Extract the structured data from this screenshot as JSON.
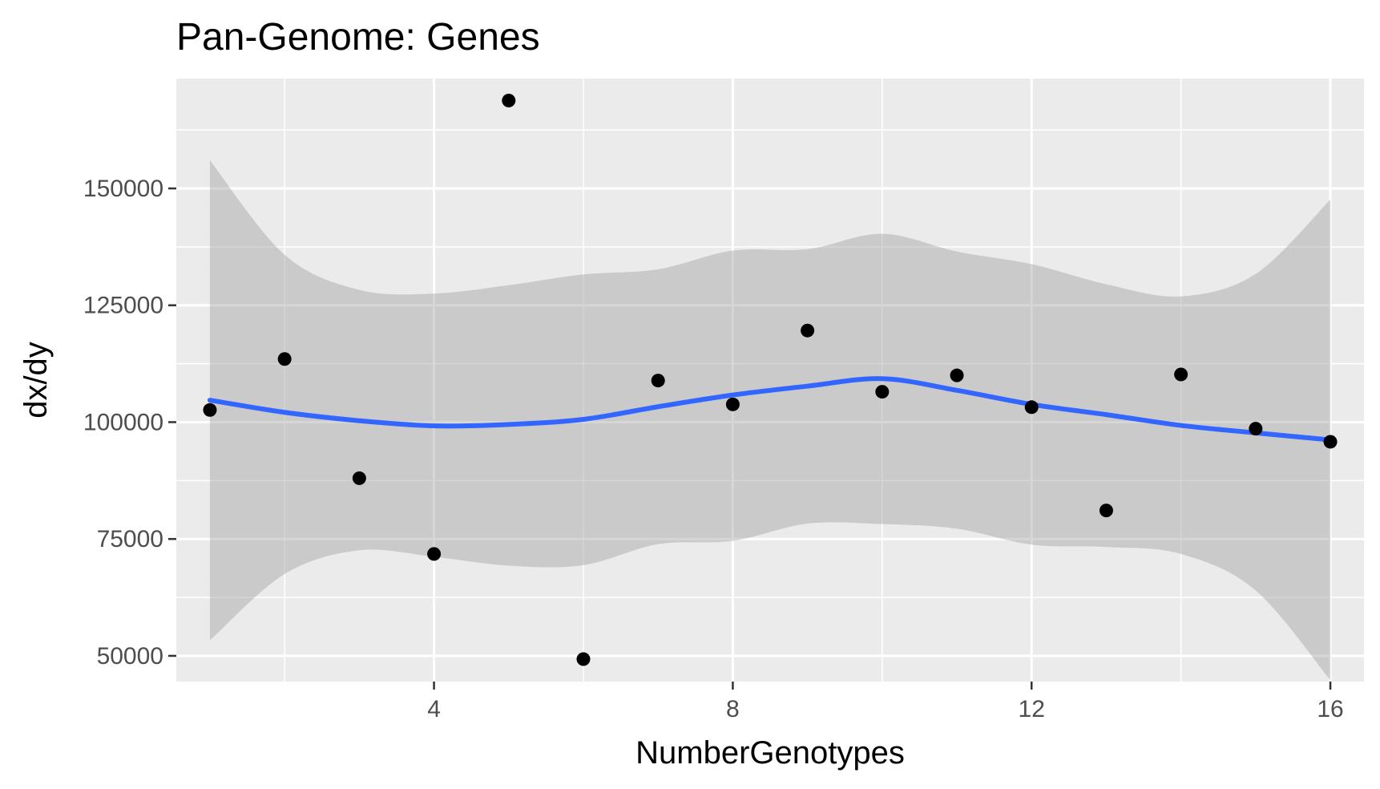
{
  "chart_data": {
    "type": "scatter",
    "title": "Pan-Genome: Genes",
    "xlabel": "NumberGenotypes",
    "ylabel": "dx/dy",
    "xlim": [
      0.55,
      16.45
    ],
    "ylim": [
      44500,
      173500
    ],
    "x_ticks": [
      4,
      8,
      12,
      16
    ],
    "y_ticks": [
      50000,
      75000,
      100000,
      125000,
      150000
    ],
    "grid": true,
    "legend": "none",
    "colors": {
      "panel": "#ebebeb",
      "grid": "#ffffff",
      "points": "#000000",
      "smooth_line": "#3366ff",
      "confidence_band": "#999999"
    },
    "points": [
      {
        "x": 1,
        "y": 102600
      },
      {
        "x": 2,
        "y": 113500
      },
      {
        "x": 3,
        "y": 88000
      },
      {
        "x": 4,
        "y": 71800
      },
      {
        "x": 5,
        "y": 168800
      },
      {
        "x": 6,
        "y": 49300
      },
      {
        "x": 7,
        "y": 108900
      },
      {
        "x": 8,
        "y": 103800
      },
      {
        "x": 9,
        "y": 119600
      },
      {
        "x": 10,
        "y": 106500
      },
      {
        "x": 11,
        "y": 110000
      },
      {
        "x": 12,
        "y": 103200
      },
      {
        "x": 13,
        "y": 81100
      },
      {
        "x": 14,
        "y": 110200
      },
      {
        "x": 15,
        "y": 98600
      },
      {
        "x": 16,
        "y": 95800
      }
    ],
    "smooth": [
      {
        "x": 1,
        "y": 104700,
        "lower": 53300,
        "upper": 156000
      },
      {
        "x": 2,
        "y": 102100,
        "lower": 67500,
        "upper": 135800
      },
      {
        "x": 3,
        "y": 100300,
        "lower": 72600,
        "upper": 128300
      },
      {
        "x": 4,
        "y": 99200,
        "lower": 71200,
        "upper": 127500
      },
      {
        "x": 5,
        "y": 99500,
        "lower": 69300,
        "upper": 129300
      },
      {
        "x": 6,
        "y": 100600,
        "lower": 69400,
        "upper": 131600
      },
      {
        "x": 7,
        "y": 103300,
        "lower": 73900,
        "upper": 132700
      },
      {
        "x": 8,
        "y": 105800,
        "lower": 74600,
        "upper": 136700
      },
      {
        "x": 9,
        "y": 107700,
        "lower": 78300,
        "upper": 137000
      },
      {
        "x": 10,
        "y": 109300,
        "lower": 78200,
        "upper": 140300
      },
      {
        "x": 11,
        "y": 106800,
        "lower": 77200,
        "upper": 136500
      },
      {
        "x": 12,
        "y": 103800,
        "lower": 73800,
        "upper": 133800
      },
      {
        "x": 13,
        "y": 101600,
        "lower": 73300,
        "upper": 129500
      },
      {
        "x": 14,
        "y": 99300,
        "lower": 71800,
        "upper": 126900
      },
      {
        "x": 15,
        "y": 97700,
        "lower": 64000,
        "upper": 131700
      },
      {
        "x": 16,
        "y": 96200,
        "lower": 44800,
        "upper": 147600
      }
    ]
  }
}
